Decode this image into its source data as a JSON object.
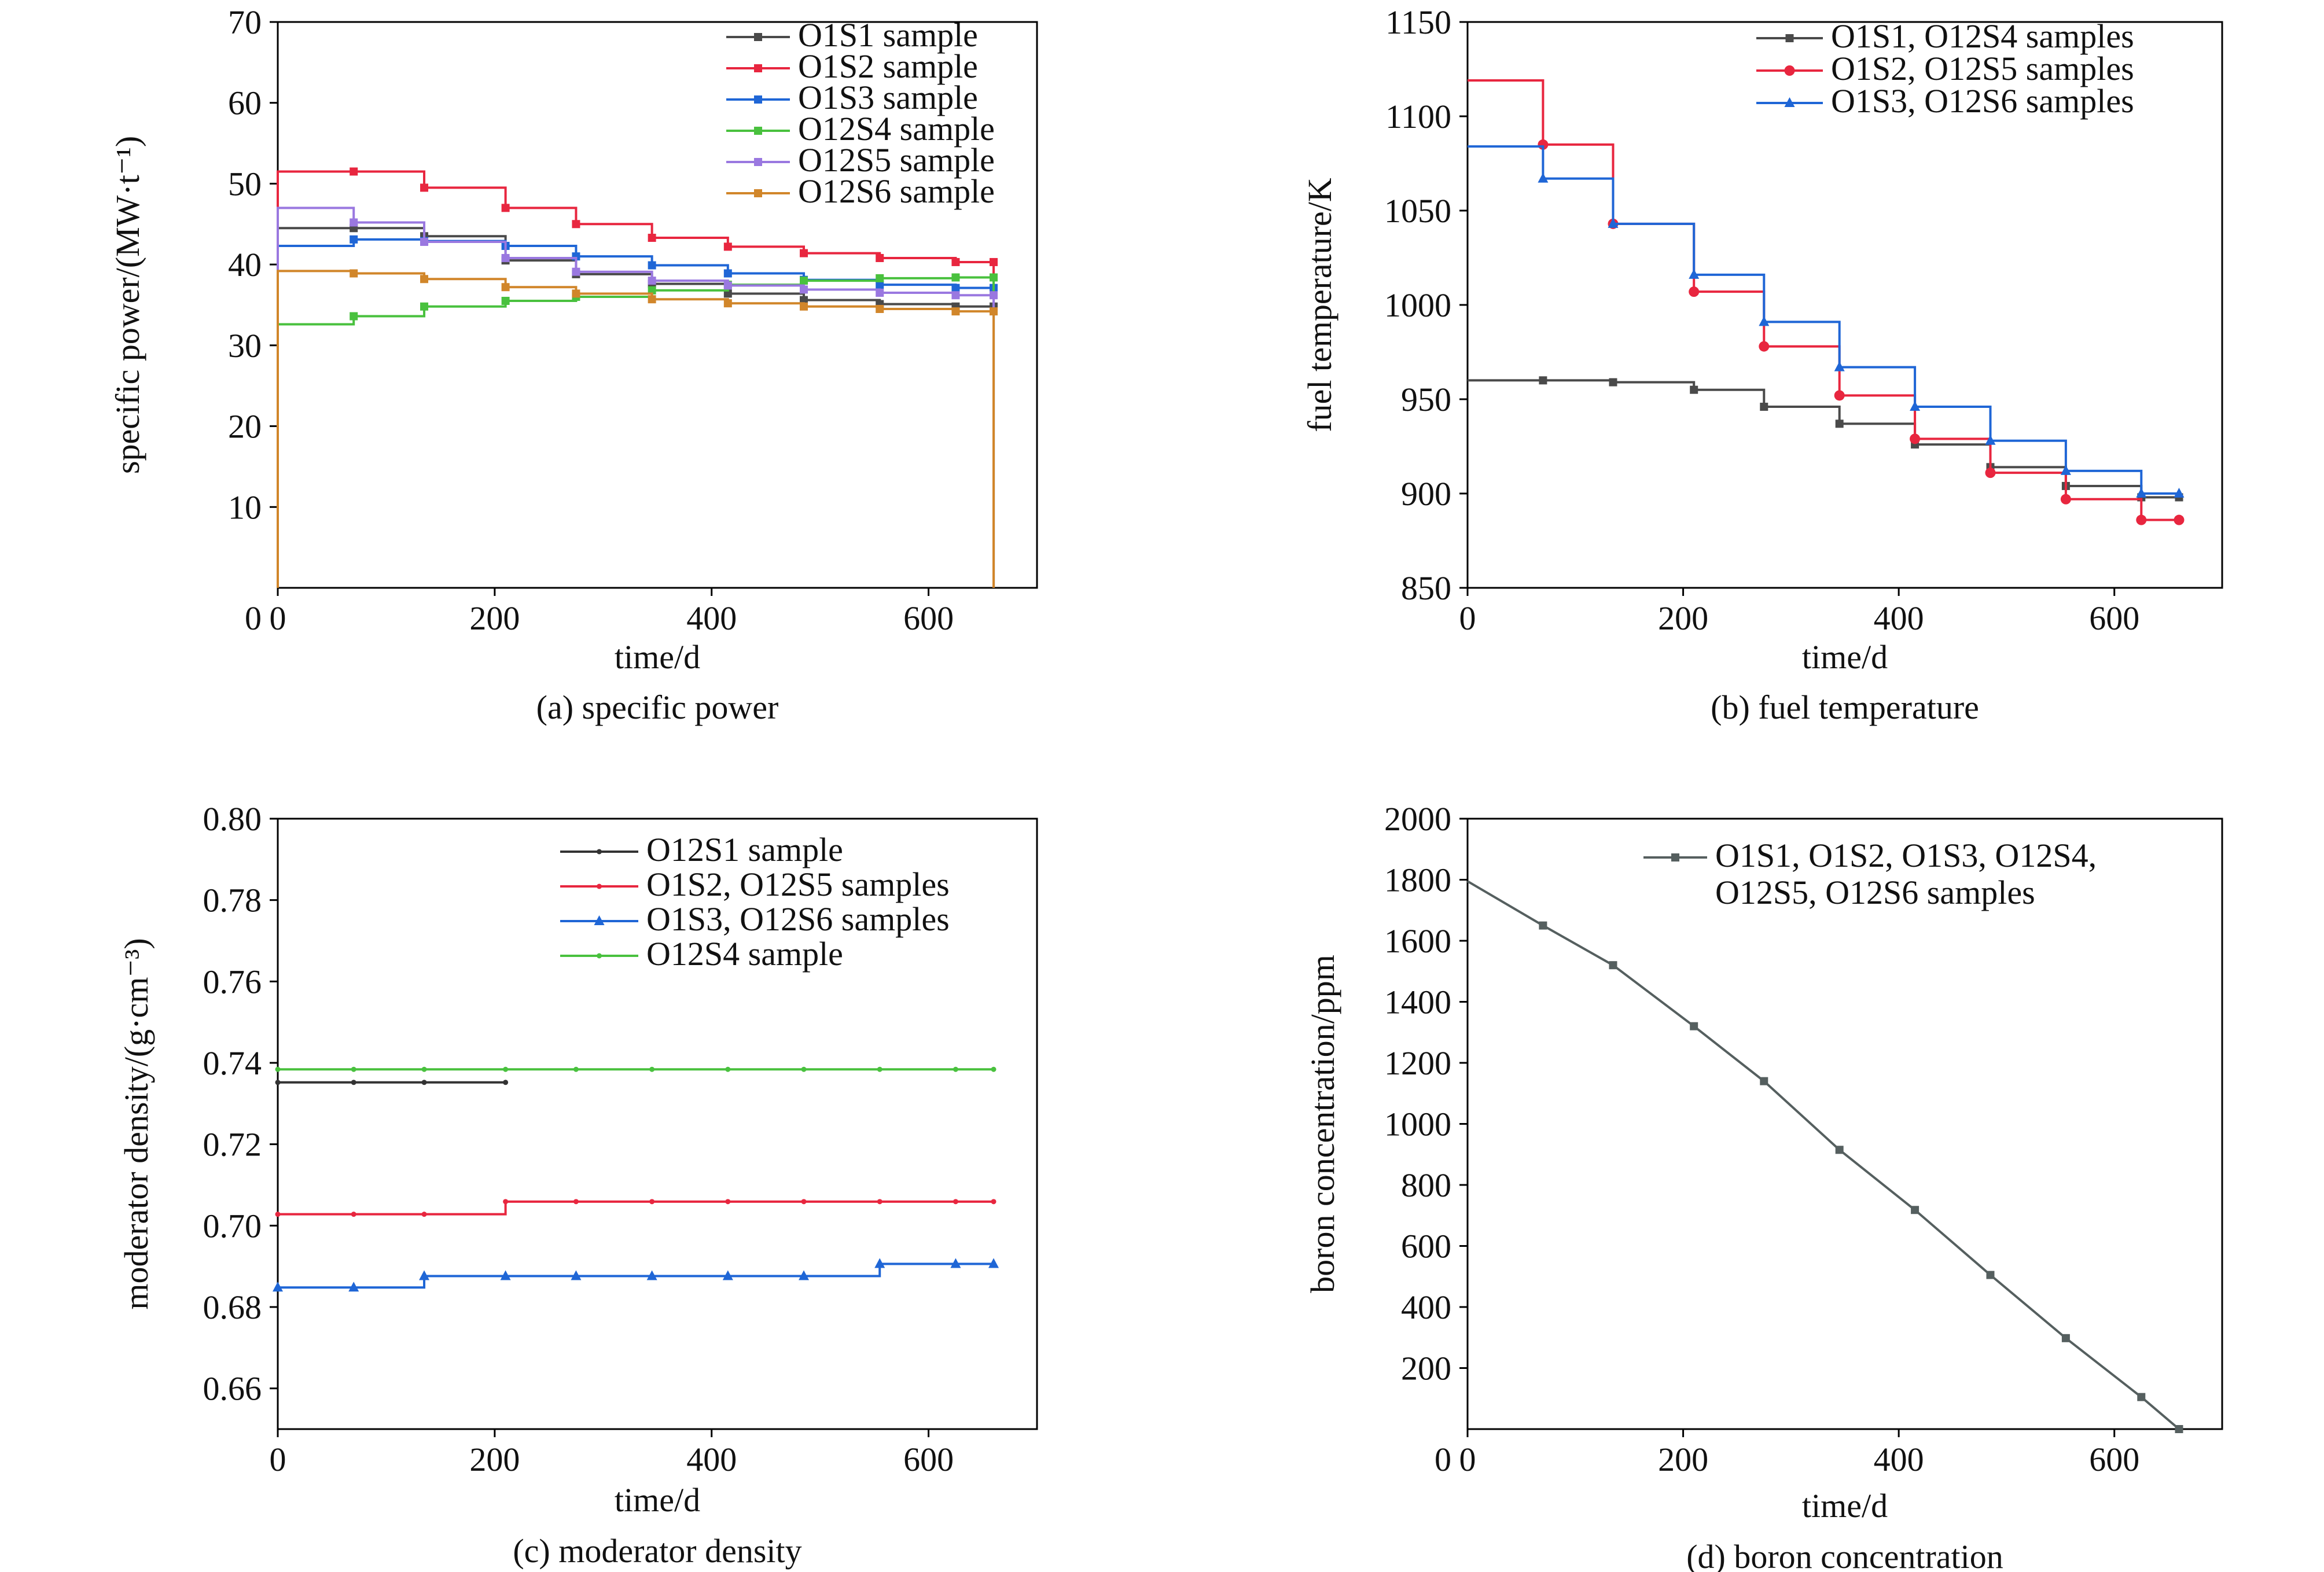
{
  "chart_data": [
    {
      "type": "line",
      "step": true,
      "caption": "(a) specific power",
      "xlabel": "time/d",
      "ylabel": "specific power/(MW·t⁻¹)",
      "xlim": [
        0,
        700
      ],
      "ylim": [
        0,
        70
      ],
      "xticks": [
        0,
        200,
        400,
        600
      ],
      "yticks": [
        10,
        20,
        30,
        40,
        50,
        60,
        70
      ],
      "ytick_zero_label": "0",
      "legend_position": "top-right",
      "drop_to_zero_at_end": true,
      "series": [
        {
          "name": "O1S1 sample",
          "color": "#4a4a4a",
          "marker": "square",
          "x": [
            0,
            70,
            135,
            210,
            275,
            345,
            415,
            485,
            555,
            625,
            660
          ],
          "y": [
            44.5,
            44.5,
            43.5,
            40.5,
            38.8,
            37.6,
            36.4,
            35.6,
            35.1,
            34.8,
            34.8
          ]
        },
        {
          "name": "O1S2 sample",
          "color": "#e8263f",
          "marker": "square",
          "x": [
            0,
            70,
            135,
            210,
            275,
            345,
            415,
            485,
            555,
            625,
            660
          ],
          "y": [
            51.5,
            51.5,
            49.5,
            47.0,
            45.0,
            43.3,
            42.2,
            41.4,
            40.8,
            40.3,
            40.3
          ]
        },
        {
          "name": "O1S3 sample",
          "color": "#1f66d6",
          "marker": "square",
          "x": [
            0,
            70,
            135,
            210,
            275,
            345,
            415,
            485,
            555,
            625,
            660
          ],
          "y": [
            42.3,
            43.1,
            42.9,
            42.3,
            41.0,
            39.9,
            38.9,
            38.1,
            37.5,
            37.1,
            37.1
          ]
        },
        {
          "name": "O12S4 sample",
          "color": "#49c13e",
          "marker": "square",
          "x": [
            0,
            70,
            135,
            210,
            275,
            345,
            415,
            485,
            555,
            625,
            660
          ],
          "y": [
            32.6,
            33.6,
            34.8,
            35.5,
            36.0,
            36.8,
            37.5,
            38.0,
            38.3,
            38.4,
            38.4
          ]
        },
        {
          "name": "O12S5 sample",
          "color": "#9a78e0",
          "marker": "square",
          "x": [
            0,
            70,
            135,
            210,
            275,
            345,
            415,
            485,
            555,
            625,
            660
          ],
          "y": [
            47.0,
            45.2,
            42.8,
            40.8,
            39.1,
            38.0,
            37.4,
            36.9,
            36.5,
            36.2,
            36.2
          ]
        },
        {
          "name": "O12S6 sample",
          "color": "#d1862a",
          "marker": "square",
          "x": [
            0,
            70,
            135,
            210,
            275,
            345,
            415,
            485,
            555,
            625,
            660
          ],
          "y": [
            39.2,
            38.9,
            38.2,
            37.2,
            36.4,
            35.7,
            35.2,
            34.8,
            34.5,
            34.2,
            34.2
          ]
        }
      ]
    },
    {
      "type": "line",
      "step": true,
      "caption": "(b) fuel temperature",
      "xlabel": "time/d",
      "ylabel": "fuel temperature/K",
      "xlim": [
        0,
        700
      ],
      "ylim": [
        850,
        1150
      ],
      "xticks": [
        0,
        200,
        400,
        600
      ],
      "yticks": [
        850,
        900,
        950,
        1000,
        1050,
        1100,
        1150
      ],
      "legend_position": "top-right",
      "series": [
        {
          "name": "O1S1,  O12S4 samples",
          "color": "#4a4a4a",
          "marker": "square",
          "x": [
            0,
            70,
            135,
            210,
            275,
            345,
            415,
            485,
            555,
            625,
            660
          ],
          "y": [
            960,
            960,
            959,
            955,
            946,
            937,
            926,
            914,
            904,
            898,
            898
          ]
        },
        {
          "name": "O1S2,  O12S5 samples",
          "color": "#e8263f",
          "marker": "circle",
          "x": [
            0,
            70,
            135,
            210,
            275,
            345,
            415,
            485,
            555,
            625,
            660
          ],
          "y": [
            1119,
            1085,
            1043,
            1007,
            978,
            952,
            929,
            911,
            897,
            886,
            886
          ]
        },
        {
          "name": "O1S3,  O12S6 samples",
          "color": "#1f66d6",
          "marker": "triangle",
          "x": [
            0,
            70,
            135,
            210,
            275,
            345,
            415,
            485,
            555,
            625,
            660
          ],
          "y": [
            1084,
            1067,
            1043,
            1016,
            991,
            967,
            946,
            928,
            912,
            900,
            900
          ]
        }
      ]
    },
    {
      "type": "line",
      "step": true,
      "caption": "(c) moderator density",
      "xlabel": "time/d",
      "ylabel": "moderator density/(g·cm⁻³)",
      "xlim": [
        0,
        700
      ],
      "ylim": [
        0.65,
        0.8
      ],
      "xticks": [
        0,
        200,
        400,
        600
      ],
      "yticks": [
        0.66,
        0.68,
        0.7,
        0.72,
        0.74,
        0.76,
        0.78,
        0.8
      ],
      "ytick_labels": [
        "0.66",
        "0.68",
        "0.70",
        "0.72",
        "0.74",
        "0.76",
        "0.78",
        "0.80"
      ],
      "legend_position": "top-right",
      "series": [
        {
          "name": "O12S1 sample",
          "color": "#333333",
          "marker": "dot",
          "x": [
            0,
            70,
            135,
            210
          ],
          "y": [
            0.7352,
            0.7352,
            0.7352,
            0.7352
          ]
        },
        {
          "name": "O1S2,  O12S5 samples",
          "color": "#e8263f",
          "marker": "dot",
          "x": [
            0,
            70,
            135,
            210,
            275,
            345,
            415,
            485,
            555,
            625,
            660
          ],
          "y": [
            0.7028,
            0.7028,
            0.7028,
            0.7059,
            0.7059,
            0.7059,
            0.7059,
            0.7059,
            0.7059,
            0.7059,
            0.7059
          ]
        },
        {
          "name": "O1S3,  O12S6 samples",
          "color": "#1f66d6",
          "marker": "triangle",
          "x": [
            0,
            70,
            135,
            210,
            275,
            345,
            415,
            485,
            555,
            625,
            660
          ],
          "y": [
            0.6848,
            0.6848,
            0.6876,
            0.6876,
            0.6876,
            0.6876,
            0.6876,
            0.6876,
            0.6906,
            0.6906,
            0.6906
          ]
        },
        {
          "name": "O12S4 sample",
          "color": "#49c13e",
          "marker": "dot",
          "x": [
            0,
            70,
            135,
            210,
            275,
            345,
            415,
            485,
            555,
            625,
            660
          ],
          "y": [
            0.7384,
            0.7384,
            0.7384,
            0.7384,
            0.7384,
            0.7384,
            0.7384,
            0.7384,
            0.7384,
            0.7384,
            0.7384
          ]
        }
      ]
    },
    {
      "type": "line",
      "step": false,
      "caption": "(d) boron concentration",
      "xlabel": "time/d",
      "ylabel": "boron concentration/ppm",
      "xlim": [
        0,
        700
      ],
      "ylim": [
        0,
        2000
      ],
      "xticks": [
        0,
        200,
        400,
        600
      ],
      "yticks": [
        200,
        400,
        600,
        800,
        1000,
        1200,
        1400,
        1600,
        1800,
        2000
      ],
      "ytick_zero_label": "0",
      "legend_position": "top-right",
      "series": [
        {
          "name": "O1S1,  O1S2,  O1S3,  O12S4,\nO12S5,  O12S6 samples",
          "color": "#555f5f",
          "marker": "square",
          "x": [
            0,
            70,
            135,
            210,
            275,
            345,
            415,
            485,
            555,
            625,
            660
          ],
          "y": [
            1795,
            1650,
            1520,
            1320,
            1140,
            915,
            718,
            505,
            298,
            105,
            0
          ]
        }
      ]
    }
  ]
}
